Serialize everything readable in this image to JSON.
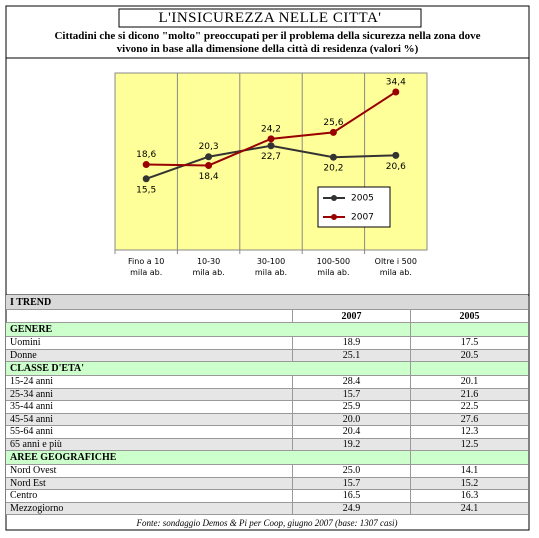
{
  "chart_data": {
    "type": "line",
    "title": "L'INSICUREZZA NELLE CITTA'",
    "subtitle": "Cittadini che si dicono \"molto\" preoccupati per il problema della sicurezza nella zona dove\nvivono  in base alla dimensione della città di residenza (valori %)",
    "categories": [
      "Fino a 10\nmila ab.",
      "10-30\nmila ab.",
      "30-100\nmila ab.",
      "100-500\nmila ab.",
      "Oltre i 500\nmila ab."
    ],
    "series": [
      {
        "name": "2005",
        "color": "#333333",
        "values": [
          15.5,
          20.3,
          22.7,
          20.2,
          20.6
        ],
        "value_labels": [
          "15,5",
          "20,3",
          "22,7",
          "20,2",
          "20,6"
        ]
      },
      {
        "name": "2007",
        "color": "#990000",
        "values": [
          18.6,
          18.4,
          24.2,
          25.6,
          34.4
        ],
        "value_labels": [
          "18,6",
          "18,4",
          "24,2",
          "25,6",
          "34,4"
        ]
      }
    ],
    "grid": "x",
    "legend": "right"
  },
  "table": {
    "title": "I TREND",
    "columns": [
      "2007",
      "2005"
    ],
    "sections": [
      {
        "name": "GENERE",
        "rows": [
          [
            "Uomini",
            "18.9",
            "17.5"
          ],
          [
            "Donne",
            "25.1",
            "20.5"
          ]
        ]
      },
      {
        "name": "CLASSE D'ETA'",
        "rows": [
          [
            "15-24 anni",
            "28.4",
            "20.1"
          ],
          [
            "25-34 anni",
            "15.7",
            "21.6"
          ],
          [
            "35-44 anni",
            "25.9",
            "22.5"
          ],
          [
            "45-54 anni",
            "20.0",
            "27.6"
          ],
          [
            "55-64 anni",
            "20.4",
            "12.3"
          ],
          [
            "65 anni e più",
            "19.2",
            "12.5"
          ]
        ]
      },
      {
        "name": "AREE GEOGRAFICHE",
        "rows": [
          [
            "Nord Ovest",
            "25.0",
            "14.1"
          ],
          [
            "Nord Est",
            "15.7",
            "15.2"
          ],
          [
            "Centro",
            "16.5",
            "16.3"
          ],
          [
            "Mezzogiorno",
            "24.9",
            "24.1"
          ]
        ]
      }
    ],
    "source": "Fonte: sondaggio Demos & Pi per Coop, giugno 2007 (base: 1307 casi)"
  }
}
